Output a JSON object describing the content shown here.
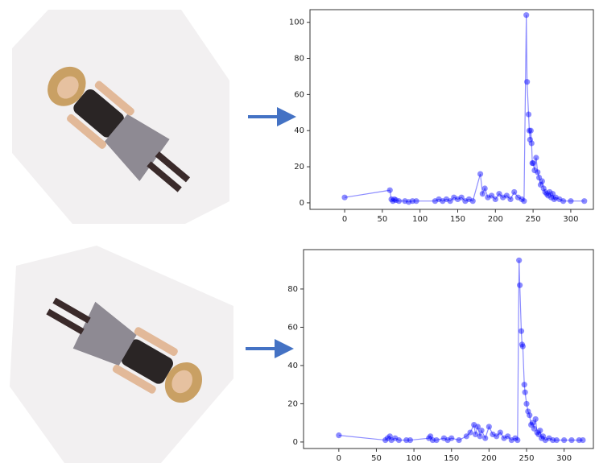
{
  "chart_data": [
    {
      "type": "line",
      "x": [
        0,
        60,
        62,
        64,
        66,
        68,
        72,
        80,
        85,
        90,
        95,
        120,
        125,
        130,
        135,
        140,
        145,
        150,
        155,
        160,
        165,
        170,
        180,
        183,
        186,
        190,
        195,
        200,
        205,
        210,
        215,
        220,
        225,
        230,
        235,
        238,
        241,
        242,
        244,
        245,
        246,
        247,
        248,
        249,
        250,
        252,
        254,
        256,
        258,
        260,
        262,
        264,
        266,
        268,
        270,
        272,
        274,
        276,
        278,
        280,
        285,
        290,
        300,
        318
      ],
      "series": [
        {
          "color": "#0000ff",
          "values": [
            3,
            7,
            2,
            1,
            2,
            1.5,
            1,
            1,
            0.5,
            1,
            1,
            1,
            2,
            1,
            2,
            1,
            3,
            2,
            3,
            1,
            2,
            1,
            16,
            5,
            8,
            3,
            4,
            2,
            5,
            3,
            4,
            2,
            6,
            3,
            2,
            1,
            104,
            67,
            49,
            40,
            35,
            40,
            33,
            22,
            22,
            18,
            25,
            17,
            14,
            10,
            12,
            8,
            6,
            5,
            4,
            6,
            3,
            5,
            2,
            3,
            2,
            1,
            1,
            1
          ]
        }
      ],
      "xlim": [
        -46,
        330
      ],
      "ylim": [
        -3.6,
        107
      ],
      "xticks": [
        0,
        50,
        100,
        150,
        200,
        250,
        300
      ],
      "yticks": [
        0,
        20,
        40,
        60,
        80,
        100
      ]
    },
    {
      "type": "line",
      "x": [
        0,
        62,
        65,
        68,
        70,
        75,
        80,
        90,
        95,
        120,
        122,
        125,
        130,
        140,
        145,
        150,
        160,
        170,
        175,
        180,
        182,
        185,
        188,
        190,
        195,
        200,
        205,
        210,
        215,
        220,
        225,
        230,
        235,
        238,
        240,
        241,
        243,
        244,
        245,
        247,
        248,
        250,
        252,
        254,
        256,
        258,
        260,
        262,
        264,
        266,
        268,
        270,
        272,
        275,
        280,
        285,
        290,
        300,
        310,
        320,
        325
      ],
      "series": [
        {
          "color": "#0000ff",
          "values": [
            3.5,
            1,
            2,
            3,
            1,
            2,
            1,
            1,
            1,
            2,
            3,
            1,
            1,
            2,
            1,
            2,
            1,
            3,
            5,
            9,
            4,
            8,
            3,
            6,
            2,
            8,
            4,
            3,
            5,
            2,
            3,
            1,
            2,
            1,
            95,
            82,
            58,
            51,
            50,
            30,
            26,
            20,
            16,
            14,
            9,
            10,
            7,
            12,
            5,
            4,
            6,
            2,
            3,
            1,
            2,
            1,
            1,
            1,
            1,
            1,
            1
          ]
        }
      ],
      "xlim": [
        -47,
        339
      ],
      "ylim": [
        -3.4,
        100.6
      ],
      "xticks": [
        0,
        50,
        100,
        150,
        200,
        250,
        300
      ],
      "yticks": [
        0,
        20,
        40,
        60,
        80
      ]
    }
  ]
}
